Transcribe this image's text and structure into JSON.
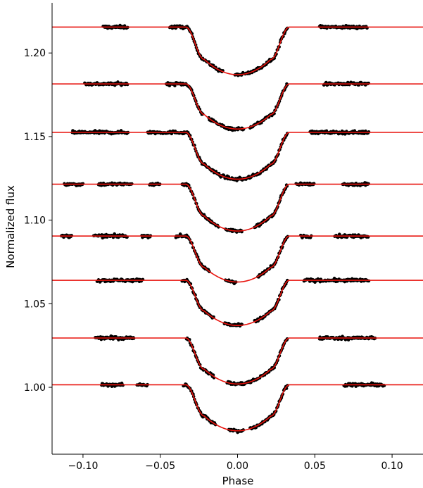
{
  "chart_data": {
    "type": "scatter",
    "title": "",
    "xlabel": "Phase",
    "ylabel": "Normalized flux",
    "xlim": [
      -0.12,
      0.12
    ],
    "ylim": [
      0.96,
      1.23
    ],
    "xticks": [
      -0.1,
      -0.05,
      0.0,
      0.05,
      0.1
    ],
    "xtick_labels": [
      "−0.10",
      "−0.05",
      "0.00",
      "0.05",
      "0.10"
    ],
    "yticks": [
      1.0,
      1.05,
      1.1,
      1.15,
      1.2
    ],
    "ytick_labels": [
      "1.00",
      "1.05",
      "1.10",
      "1.15",
      "1.20"
    ],
    "grid": false,
    "model_color": "#e8120c",
    "point_color": "#000000",
    "transit": {
      "t1": 0.0335,
      "t2": 0.0215
    },
    "series": [
      {
        "baseline": 1.2155,
        "depth": 0.0285,
        "segments": [
          [
            -0.087,
            -0.071
          ],
          [
            -0.044,
            0.0325
          ],
          [
            0.053,
            0.084
          ]
        ],
        "gaps": [
          [
            -0.009,
            -0.002
          ]
        ]
      },
      {
        "baseline": 1.1815,
        "depth": 0.027,
        "segments": [
          [
            -0.099,
            -0.071
          ],
          [
            -0.046,
            0.0325
          ],
          [
            0.056,
            0.085
          ]
        ],
        "gaps": [
          [
            -0.022,
            -0.019
          ],
          [
            0.004,
            0.008
          ]
        ]
      },
      {
        "baseline": 1.1525,
        "depth": 0.028,
        "segments": [
          [
            -0.107,
            -0.071
          ],
          [
            -0.058,
            0.0325
          ],
          [
            0.047,
            0.085
          ]
        ],
        "gaps": []
      },
      {
        "baseline": 1.1215,
        "depth": 0.028,
        "segments": [
          [
            -0.112,
            -0.1
          ],
          [
            -0.09,
            -0.068
          ],
          [
            -0.057,
            -0.05
          ],
          [
            -0.036,
            0.0325
          ],
          [
            0.038,
            0.05
          ],
          [
            0.068,
            0.085
          ]
        ],
        "gaps": [
          [
            -0.012,
            -0.008
          ],
          [
            0.003,
            0.011
          ]
        ]
      },
      {
        "baseline": 1.0905,
        "depth": 0.0275,
        "segments": [
          [
            -0.114,
            -0.107
          ],
          [
            -0.093,
            -0.071
          ],
          [
            -0.062,
            -0.056
          ],
          [
            -0.04,
            0.0325
          ],
          [
            0.041,
            0.048
          ],
          [
            0.063,
            0.085
          ]
        ],
        "gaps": [
          [
            -0.018,
            -0.008
          ],
          [
            -0.001,
            0.013
          ]
        ]
      },
      {
        "baseline": 1.064,
        "depth": 0.027,
        "segments": [
          [
            -0.091,
            -0.061
          ],
          [
            -0.036,
            0.0325
          ],
          [
            0.043,
            0.085
          ]
        ],
        "gaps": [
          [
            -0.015,
            -0.009
          ],
          [
            0.003,
            0.011
          ]
        ]
      },
      {
        "baseline": 1.0295,
        "depth": 0.0275,
        "segments": [
          [
            -0.092,
            -0.067
          ],
          [
            -0.033,
            0.0325
          ],
          [
            0.053,
            0.089
          ]
        ],
        "gaps": [
          [
            -0.015,
            -0.007
          ]
        ]
      },
      {
        "baseline": 1.0015,
        "depth": 0.0275,
        "segments": [
          [
            -0.088,
            -0.074
          ],
          [
            -0.065,
            -0.058
          ],
          [
            -0.035,
            0.0325
          ],
          [
            0.069,
            0.095
          ]
        ],
        "gaps": [
          [
            -0.014,
            -0.006
          ],
          [
            0.004,
            0.008
          ]
        ]
      }
    ]
  }
}
